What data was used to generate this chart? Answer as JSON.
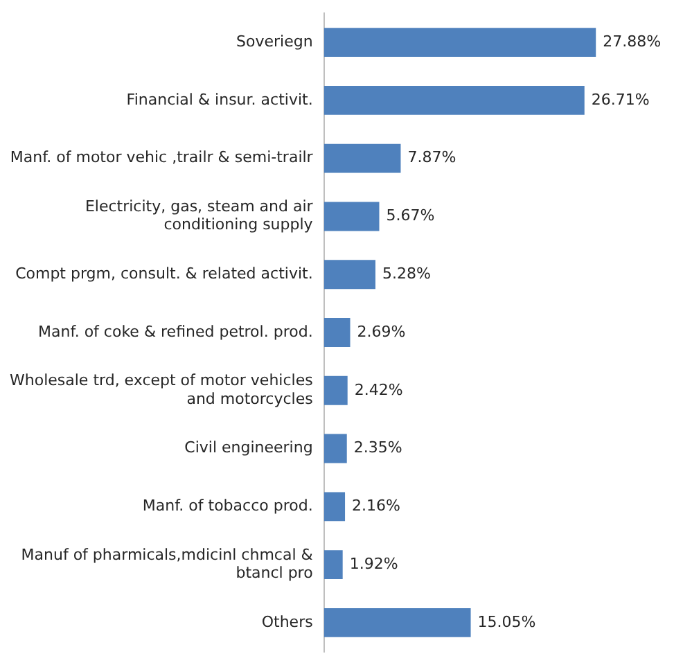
{
  "chart_data": {
    "type": "bar",
    "orientation": "horizontal",
    "categories": [
      "Soveriegn",
      "Financial & insur. activit.",
      "Manf. of motor vehic ,trailr & semi-trailr",
      "Electricity, gas, steam and air conditioning supply",
      "Compt prgm, consult. & related activit.",
      "Manf. of coke & refined petrol. prod.",
      "Wholesale trd, except of motor vehicles and motorcycles",
      "Civil engineering",
      "Manf. of tobacco prod.",
      "Manuf of pharmicals,mdicinl chmcal & btancl pro",
      "Others"
    ],
    "values": [
      27.88,
      26.71,
      7.87,
      5.67,
      5.28,
      2.69,
      2.42,
      2.35,
      2.16,
      1.92,
      15.05
    ],
    "value_labels": [
      "27.88%",
      "26.71%",
      "7.87%",
      "5.67%",
      "5.28%",
      "2.69%",
      "2.42%",
      "2.35%",
      "2.16%",
      "1.92%",
      "15.05%"
    ],
    "color": "#4f81bd",
    "grid": false,
    "legend": false,
    "tick_labels": "y"
  }
}
